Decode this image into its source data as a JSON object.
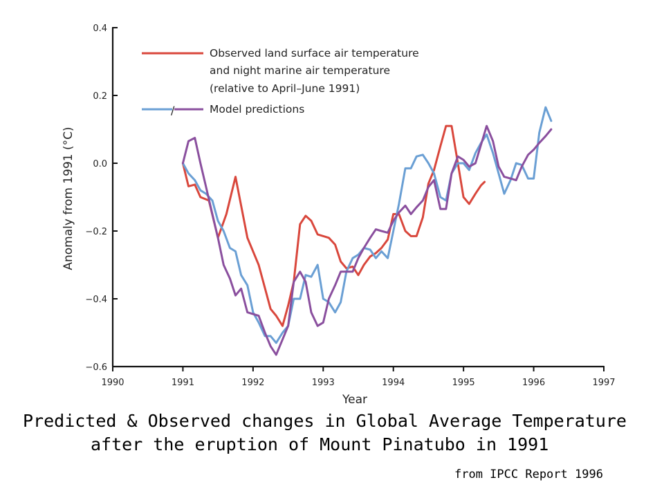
{
  "caption": {
    "line1": "Predicted & Observed changes in Global Average Temperature",
    "line2": "after the eruption of Mount Pinatubo in 1991",
    "source": "from IPCC Report 1996"
  },
  "chart_data": {
    "type": "line",
    "xlabel": "Year",
    "ylabel": "Anomaly from 1991 (°C)",
    "xlim": [
      1990,
      1997
    ],
    "ylim": [
      -0.6,
      0.4
    ],
    "x_ticks": [
      "1990",
      "1991",
      "1992",
      "1993",
      "1994",
      "1995",
      "1996",
      "1997"
    ],
    "y_ticks": [
      "0.4",
      "0.2",
      "0.0",
      "−0.2",
      "−0.4",
      "−0.6"
    ],
    "grid": false,
    "legend_position": "top-left",
    "legend": {
      "observed_lines": [
        "Observed land surface air temperature",
        "and night marine air temperature",
        "(relative to April–June 1991)"
      ],
      "model_label": "Model predictions",
      "model_separator": "/"
    },
    "series": [
      {
        "name": "Observed land surface air temperature and night marine air temperature (relative to April–June 1991)",
        "color": "#d9473c",
        "points": [
          [
            1991.0,
            0.0
          ],
          [
            1991.08,
            -0.068
          ],
          [
            1991.17,
            -0.063
          ],
          [
            1991.25,
            -0.1
          ],
          [
            1991.37,
            -0.11
          ],
          [
            1991.5,
            -0.22
          ],
          [
            1991.62,
            -0.15
          ],
          [
            1991.75,
            -0.04
          ],
          [
            1991.92,
            -0.22
          ],
          [
            1992.08,
            -0.3
          ],
          [
            1992.25,
            -0.43
          ],
          [
            1992.33,
            -0.45
          ],
          [
            1992.42,
            -0.48
          ],
          [
            1992.5,
            -0.42
          ],
          [
            1992.58,
            -0.35
          ],
          [
            1992.67,
            -0.18
          ],
          [
            1992.75,
            -0.155
          ],
          [
            1992.83,
            -0.17
          ],
          [
            1992.92,
            -0.21
          ],
          [
            1993.08,
            -0.22
          ],
          [
            1993.17,
            -0.24
          ],
          [
            1993.25,
            -0.29
          ],
          [
            1993.33,
            -0.31
          ],
          [
            1993.42,
            -0.305
          ],
          [
            1993.5,
            -0.33
          ],
          [
            1993.58,
            -0.3
          ],
          [
            1993.67,
            -0.275
          ],
          [
            1993.75,
            -0.265
          ],
          [
            1993.83,
            -0.25
          ],
          [
            1993.92,
            -0.225
          ],
          [
            1994.0,
            -0.15
          ],
          [
            1994.08,
            -0.15
          ],
          [
            1994.17,
            -0.2
          ],
          [
            1994.25,
            -0.215
          ],
          [
            1994.33,
            -0.215
          ],
          [
            1994.42,
            -0.16
          ],
          [
            1994.5,
            -0.06
          ],
          [
            1994.58,
            -0.02
          ],
          [
            1994.67,
            0.05
          ],
          [
            1994.75,
            0.11
          ],
          [
            1994.83,
            0.11
          ],
          [
            1994.92,
            0.0
          ],
          [
            1995.0,
            -0.1
          ],
          [
            1995.08,
            -0.12
          ],
          [
            1995.17,
            -0.09
          ],
          [
            1995.25,
            -0.065
          ],
          [
            1995.3,
            -0.055
          ]
        ]
      },
      {
        "name": "Model predictions",
        "color": "#6a9fd4",
        "points": [
          [
            1991.0,
            0.0
          ],
          [
            1991.08,
            -0.03
          ],
          [
            1991.17,
            -0.05
          ],
          [
            1991.25,
            -0.08
          ],
          [
            1991.33,
            -0.09
          ],
          [
            1991.42,
            -0.11
          ],
          [
            1991.5,
            -0.17
          ],
          [
            1991.58,
            -0.2
          ],
          [
            1991.67,
            -0.25
          ],
          [
            1991.75,
            -0.26
          ],
          [
            1991.83,
            -0.33
          ],
          [
            1991.92,
            -0.36
          ],
          [
            1992.0,
            -0.44
          ],
          [
            1992.08,
            -0.47
          ],
          [
            1992.17,
            -0.51
          ],
          [
            1992.25,
            -0.51
          ],
          [
            1992.33,
            -0.53
          ],
          [
            1992.42,
            -0.5
          ],
          [
            1992.5,
            -0.48
          ],
          [
            1992.58,
            -0.4
          ],
          [
            1992.67,
            -0.4
          ],
          [
            1992.75,
            -0.33
          ],
          [
            1992.83,
            -0.335
          ],
          [
            1992.92,
            -0.3
          ],
          [
            1993.0,
            -0.4
          ],
          [
            1993.08,
            -0.41
          ],
          [
            1993.17,
            -0.44
          ],
          [
            1993.25,
            -0.41
          ],
          [
            1993.33,
            -0.32
          ],
          [
            1993.42,
            -0.28
          ],
          [
            1993.5,
            -0.27
          ],
          [
            1993.58,
            -0.25
          ],
          [
            1993.67,
            -0.255
          ],
          [
            1993.75,
            -0.28
          ],
          [
            1993.83,
            -0.26
          ],
          [
            1993.92,
            -0.28
          ],
          [
            1994.0,
            -0.2
          ],
          [
            1994.08,
            -0.12
          ],
          [
            1994.17,
            -0.015
          ],
          [
            1994.25,
            -0.015
          ],
          [
            1994.33,
            0.02
          ],
          [
            1994.42,
            0.025
          ],
          [
            1994.5,
            0.0
          ],
          [
            1994.58,
            -0.03
          ],
          [
            1994.67,
            -0.1
          ],
          [
            1994.75,
            -0.11
          ],
          [
            1994.83,
            -0.03
          ],
          [
            1994.92,
            0.0
          ],
          [
            1995.0,
            0.0
          ],
          [
            1995.08,
            -0.02
          ],
          [
            1995.17,
            0.03
          ],
          [
            1995.25,
            0.06
          ],
          [
            1995.33,
            0.085
          ],
          [
            1995.42,
            0.03
          ],
          [
            1995.5,
            -0.03
          ],
          [
            1995.58,
            -0.09
          ],
          [
            1995.67,
            -0.05
          ],
          [
            1995.75,
            0.0
          ],
          [
            1995.83,
            -0.005
          ],
          [
            1995.92,
            -0.045
          ],
          [
            1996.0,
            -0.045
          ],
          [
            1996.08,
            0.09
          ],
          [
            1996.17,
            0.165
          ],
          [
            1996.25,
            0.125
          ]
        ]
      },
      {
        "name": "Model predictions",
        "color": "#8a4f9e",
        "points": [
          [
            1991.0,
            0.0
          ],
          [
            1991.08,
            0.065
          ],
          [
            1991.17,
            0.075
          ],
          [
            1991.25,
            0.0
          ],
          [
            1991.33,
            -0.07
          ],
          [
            1991.42,
            -0.15
          ],
          [
            1991.5,
            -0.22
          ],
          [
            1991.58,
            -0.3
          ],
          [
            1991.67,
            -0.34
          ],
          [
            1991.75,
            -0.39
          ],
          [
            1991.83,
            -0.37
          ],
          [
            1991.92,
            -0.44
          ],
          [
            1992.0,
            -0.445
          ],
          [
            1992.08,
            -0.45
          ],
          [
            1992.17,
            -0.5
          ],
          [
            1992.25,
            -0.54
          ],
          [
            1992.33,
            -0.565
          ],
          [
            1992.42,
            -0.52
          ],
          [
            1992.5,
            -0.48
          ],
          [
            1992.58,
            -0.35
          ],
          [
            1992.67,
            -0.32
          ],
          [
            1992.75,
            -0.35
          ],
          [
            1992.83,
            -0.44
          ],
          [
            1992.92,
            -0.48
          ],
          [
            1993.0,
            -0.47
          ],
          [
            1993.08,
            -0.4
          ],
          [
            1993.17,
            -0.36
          ],
          [
            1993.25,
            -0.32
          ],
          [
            1993.33,
            -0.32
          ],
          [
            1993.42,
            -0.32
          ],
          [
            1993.5,
            -0.28
          ],
          [
            1993.58,
            -0.25
          ],
          [
            1993.67,
            -0.22
          ],
          [
            1993.75,
            -0.195
          ],
          [
            1993.83,
            -0.2
          ],
          [
            1993.92,
            -0.205
          ],
          [
            1994.0,
            -0.17
          ],
          [
            1994.08,
            -0.145
          ],
          [
            1994.17,
            -0.125
          ],
          [
            1994.25,
            -0.15
          ],
          [
            1994.33,
            -0.13
          ],
          [
            1994.42,
            -0.11
          ],
          [
            1994.5,
            -0.07
          ],
          [
            1994.58,
            -0.05
          ],
          [
            1994.67,
            -0.135
          ],
          [
            1994.75,
            -0.135
          ],
          [
            1994.83,
            -0.03
          ],
          [
            1994.92,
            0.02
          ],
          [
            1995.0,
            0.01
          ],
          [
            1995.08,
            -0.01
          ],
          [
            1995.17,
            0.0
          ],
          [
            1995.25,
            0.055
          ],
          [
            1995.33,
            0.11
          ],
          [
            1995.42,
            0.065
          ],
          [
            1995.5,
            -0.01
          ],
          [
            1995.58,
            -0.04
          ],
          [
            1995.67,
            -0.045
          ],
          [
            1995.75,
            -0.05
          ],
          [
            1995.83,
            -0.01
          ],
          [
            1995.92,
            0.025
          ],
          [
            1996.0,
            0.04
          ],
          [
            1996.08,
            0.06
          ],
          [
            1996.17,
            0.08
          ],
          [
            1996.25,
            0.1
          ]
        ]
      }
    ]
  }
}
